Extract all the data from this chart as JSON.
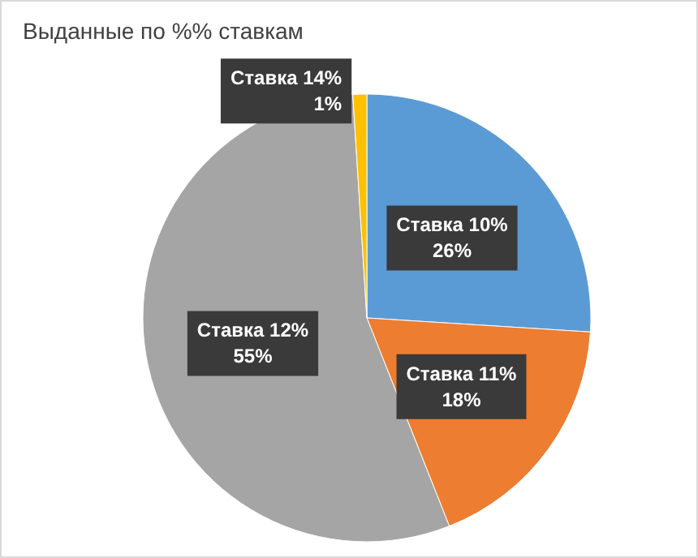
{
  "chart_data": {
    "type": "pie",
    "title": "Выданные по %% ставкам",
    "categories": [
      "Ставка 10%",
      "Ставка 11%",
      "Ставка 12%",
      "Ставка 14%"
    ],
    "values": [
      26,
      18,
      55,
      1
    ],
    "value_labels": [
      "26%",
      "18%",
      "55%",
      "1%"
    ],
    "colors": [
      "#5b9bd5",
      "#ed7d31",
      "#a5a5a5",
      "#ffc000"
    ],
    "legend": false
  }
}
